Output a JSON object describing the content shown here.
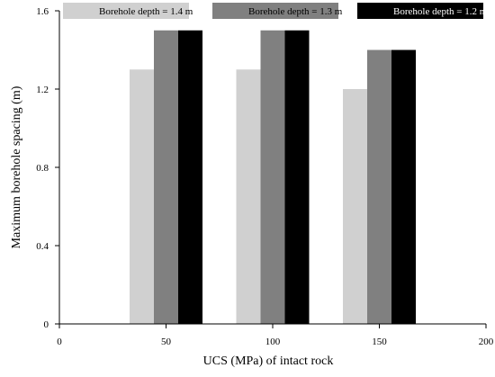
{
  "chart_data": {
    "type": "bar",
    "xlabel": "UCS (MPa) of intact rock",
    "ylabel": "Maximum borehole spacing (m)",
    "xlim": [
      0,
      200
    ],
    "ylim": [
      0,
      1.6
    ],
    "x_ticks": [
      "0",
      "50",
      "100",
      "150",
      "200"
    ],
    "y_ticks": [
      "0",
      "0.4",
      "0.8",
      "1.2",
      "1.6"
    ],
    "categories": [
      50,
      100,
      150
    ],
    "series": [
      {
        "name": "Borehole depth = 1.4 m",
        "values": [
          1.3,
          1.3,
          1.2
        ],
        "color": "#d0d0d0"
      },
      {
        "name": "Borehole depth = 1.3 m",
        "values": [
          1.5,
          1.5,
          1.4
        ],
        "color": "#808080"
      },
      {
        "name": "Borehole depth = 1.2 m",
        "values": [
          1.5,
          1.5,
          1.4
        ],
        "color": "#000000"
      }
    ],
    "legend_position": "top",
    "grid": false
  }
}
